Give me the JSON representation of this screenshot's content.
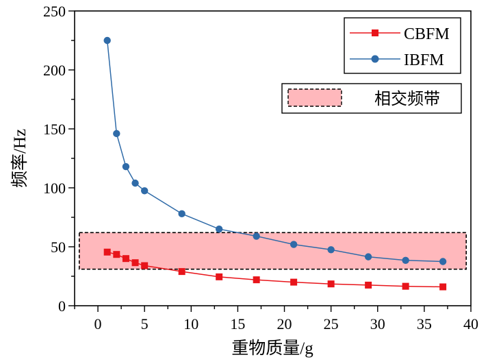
{
  "chart_data": {
    "type": "line",
    "xlabel": "重物质量/g",
    "ylabel": "频率/Hz",
    "xlim": [
      -2.5,
      40
    ],
    "ylim": [
      0,
      250
    ],
    "xticks": [
      0,
      5,
      10,
      15,
      20,
      25,
      30,
      35,
      40
    ],
    "yticks": [
      0,
      50,
      100,
      150,
      200,
      250
    ],
    "grid": false,
    "legend_position": "top-right",
    "series": [
      {
        "name": "CBFM",
        "color": "#e8141a",
        "marker": "square",
        "x": [
          1,
          2,
          3,
          4,
          5,
          9,
          13,
          17,
          21,
          25,
          29,
          33,
          37
        ],
        "y": [
          45.5,
          43.5,
          40,
          36.5,
          34,
          29,
          24.5,
          22,
          20,
          18.5,
          17.5,
          16.5,
          16
        ]
      },
      {
        "name": "IBFM",
        "color": "#2f6ba8",
        "marker": "circle",
        "x": [
          1,
          2,
          3,
          4,
          5,
          9,
          13,
          17,
          21,
          25,
          29,
          33,
          37
        ],
        "y": [
          225,
          146,
          118,
          104,
          97.5,
          78,
          65,
          59,
          52,
          47.5,
          41.5,
          38.5,
          37.5
        ]
      }
    ],
    "bands": [
      {
        "name": "相交频带",
        "x_range": [
          -2,
          39.5
        ],
        "y_range": [
          31,
          62
        ],
        "fill": "#ffb8bc",
        "border": "dashed black"
      }
    ]
  }
}
